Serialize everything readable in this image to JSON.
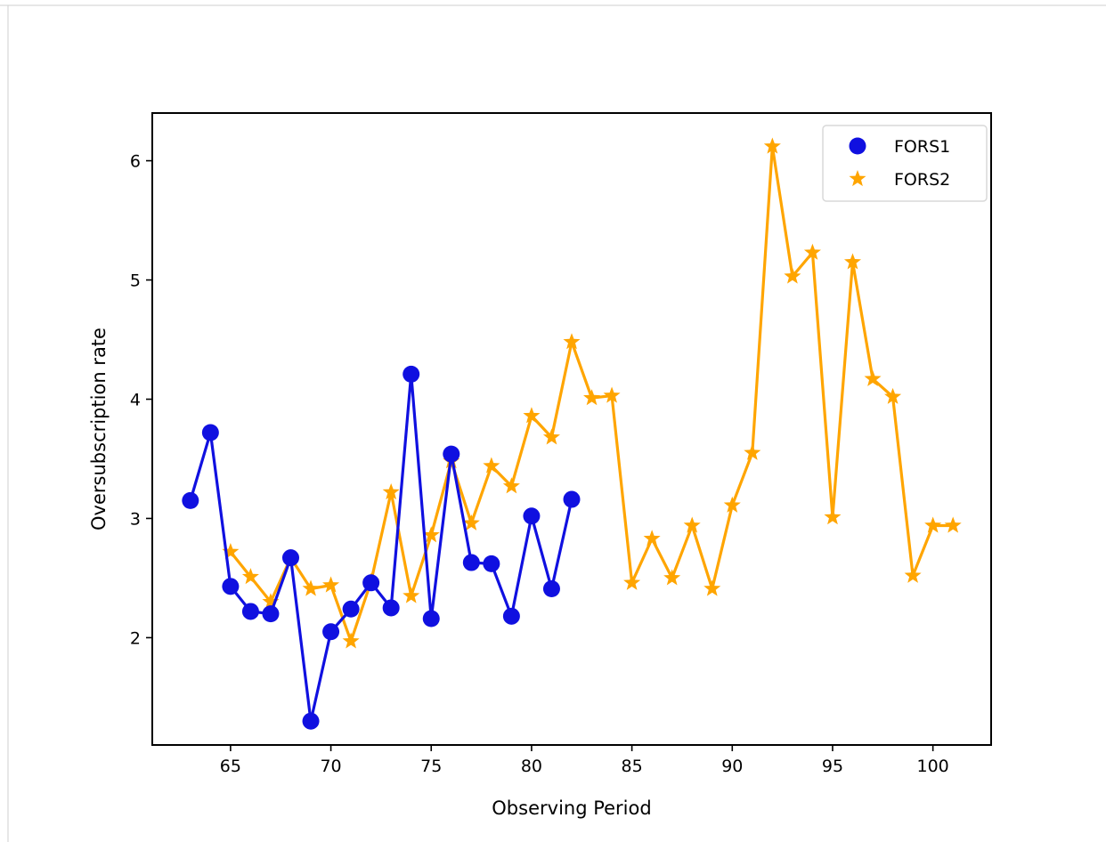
{
  "chart_data": {
    "type": "line",
    "xlabel": "Observing Period",
    "ylabel": "Oversubscription rate",
    "xlim": [
      61.1,
      102.9
    ],
    "ylim": [
      1.1,
      6.4
    ],
    "xticks": [
      65,
      70,
      75,
      80,
      85,
      90,
      95,
      100
    ],
    "yticks": [
      2,
      3,
      4,
      5,
      6
    ],
    "grid": false,
    "legend_position": "top-right",
    "series": [
      {
        "name": "FORS1",
        "marker": "circle",
        "color": "#1010e0",
        "x": [
          63,
          64,
          65,
          66,
          67,
          68,
          69,
          70,
          71,
          72,
          73,
          74,
          75,
          76,
          77,
          78,
          79,
          80,
          81,
          82
        ],
        "y": [
          3.15,
          3.72,
          2.43,
          2.22,
          2.2,
          2.67,
          1.3,
          2.05,
          2.24,
          2.46,
          2.25,
          4.21,
          2.16,
          3.54,
          2.63,
          2.62,
          2.18,
          3.02,
          2.41,
          3.16
        ]
      },
      {
        "name": "FORS2",
        "marker": "star",
        "color": "#ffa500",
        "x": [
          65,
          66,
          67,
          68,
          69,
          70,
          71,
          72,
          73,
          74,
          75,
          76,
          77,
          78,
          79,
          80,
          81,
          82,
          83,
          84,
          85,
          86,
          87,
          88,
          89,
          90,
          91,
          92,
          93,
          94,
          95,
          96,
          97,
          98,
          99,
          100,
          101
        ],
        "y": [
          2.72,
          2.51,
          2.3,
          2.67,
          2.41,
          2.44,
          1.97,
          2.47,
          3.22,
          2.35,
          2.86,
          3.48,
          2.96,
          3.44,
          3.27,
          3.86,
          3.68,
          4.48,
          4.01,
          4.03,
          2.46,
          2.83,
          2.5,
          2.94,
          2.41,
          3.11,
          3.55,
          6.12,
          5.03,
          5.23,
          3.01,
          5.15,
          4.17,
          4.02,
          2.52,
          2.94,
          2.94
        ]
      }
    ]
  }
}
